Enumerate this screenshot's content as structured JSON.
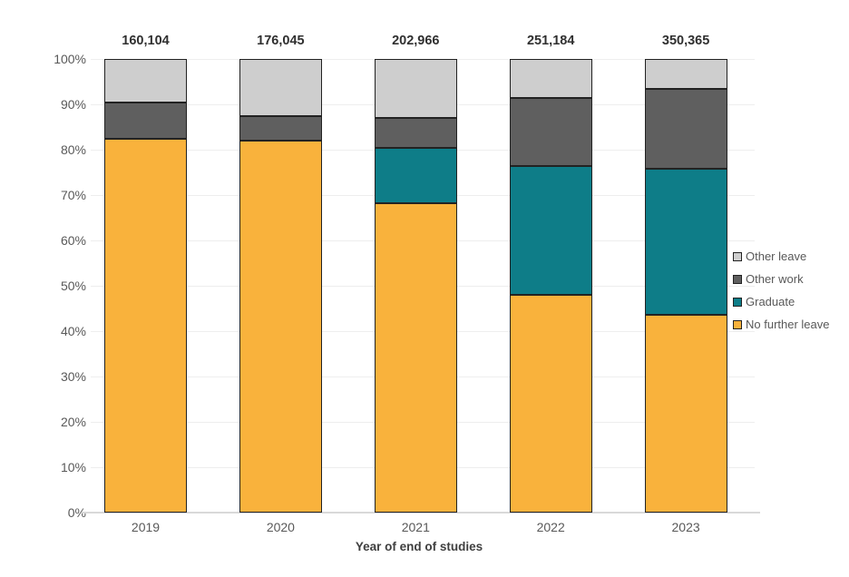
{
  "chart_data": {
    "type": "bar",
    "subtype": "stacked-100-percent",
    "xlabel": "Year of end of studies",
    "ylabel": "",
    "categories": [
      "2019",
      "2020",
      "2021",
      "2022",
      "2023"
    ],
    "bar_totals": [
      "160,104",
      "176,045",
      "202,966",
      "251,184",
      "350,365"
    ],
    "y_ticks": [
      0,
      10,
      20,
      30,
      40,
      50,
      60,
      70,
      80,
      90,
      100
    ],
    "y_tick_suffix": "%",
    "ylim": [
      0,
      100
    ],
    "grid": "horizontal",
    "legend_position": "right",
    "series": [
      {
        "name": "No further leave",
        "color": "#F9B23C",
        "values": [
          82.4,
          82.0,
          68.2,
          48.0,
          43.6
        ]
      },
      {
        "name": "Graduate",
        "color": "#0E7D88",
        "values": [
          0,
          0,
          12.2,
          28.4,
          32.2
        ]
      },
      {
        "name": "Other work",
        "color": "#5F5F5F",
        "values": [
          8.0,
          5.4,
          6.6,
          15.0,
          17.6
        ]
      },
      {
        "name": "Other leave",
        "color": "#CECECE",
        "values": [
          9.6,
          12.6,
          13.0,
          8.6,
          6.6
        ]
      }
    ],
    "legend_order": [
      "Other leave",
      "Other work",
      "Graduate",
      "No further leave"
    ]
  },
  "colors": {
    "grid": "#eeeeee",
    "axis_line": "#d9d9d9",
    "tick_text": "#595959",
    "total_text": "#303030",
    "segment_border": "#222222"
  }
}
